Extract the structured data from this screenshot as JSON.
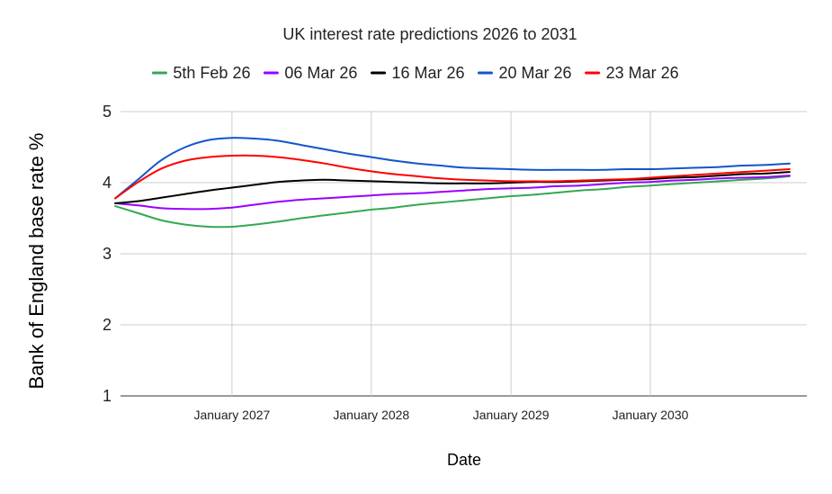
{
  "chart_data": {
    "type": "line",
    "title": "UK interest rate predictions 2026 to 2031",
    "xlabel": "Date",
    "ylabel": "Bank of England base rate %",
    "xlim": [
      "2026-03-15",
      "2031-02-15"
    ],
    "ylim": [
      1,
      5
    ],
    "yticks": [
      "1",
      "2",
      "3",
      "4",
      "5"
    ],
    "xticks": [
      {
        "label": "January 2027",
        "value": "2027-01-01"
      },
      {
        "label": "January 2028",
        "value": "2028-01-01"
      },
      {
        "label": "January 2029",
        "value": "2029-01-01"
      },
      {
        "label": "January 2030",
        "value": "2030-01-01"
      }
    ],
    "grid": true,
    "legend_position": "top",
    "x": [
      "2026-03",
      "2026-05",
      "2026-07",
      "2026-09",
      "2026-11",
      "2027-01",
      "2027-03",
      "2027-05",
      "2027-07",
      "2027-09",
      "2027-11",
      "2028-01",
      "2028-03",
      "2028-05",
      "2028-07",
      "2028-09",
      "2028-11",
      "2029-01",
      "2029-03",
      "2029-05",
      "2029-07",
      "2029-09",
      "2029-11",
      "2030-01",
      "2030-03",
      "2030-05",
      "2030-07",
      "2030-09",
      "2030-11",
      "2031-01"
    ],
    "series": [
      {
        "name": "5th Feb 26",
        "color": "#34a853",
        "values": [
          3.67,
          3.57,
          3.47,
          3.41,
          3.38,
          3.38,
          3.41,
          3.45,
          3.5,
          3.54,
          3.58,
          3.62,
          3.65,
          3.69,
          3.72,
          3.75,
          3.78,
          3.81,
          3.83,
          3.86,
          3.89,
          3.91,
          3.94,
          3.96,
          3.98,
          4.0,
          4.02,
          4.04,
          4.06,
          4.09
        ]
      },
      {
        "name": "06 Mar 26",
        "color": "#9900ff",
        "values": [
          3.71,
          3.68,
          3.64,
          3.63,
          3.63,
          3.65,
          3.69,
          3.73,
          3.76,
          3.78,
          3.8,
          3.82,
          3.84,
          3.85,
          3.87,
          3.89,
          3.91,
          3.92,
          3.93,
          3.95,
          3.96,
          3.98,
          4.0,
          4.01,
          4.03,
          4.04,
          4.06,
          4.07,
          4.08,
          4.1
        ]
      },
      {
        "name": "16 Mar 26",
        "color": "#000000",
        "values": [
          3.71,
          3.74,
          3.79,
          3.84,
          3.89,
          3.93,
          3.97,
          4.01,
          4.03,
          4.04,
          4.03,
          4.02,
          4.01,
          4.0,
          3.99,
          3.99,
          3.99,
          4.0,
          4.01,
          4.01,
          4.02,
          4.03,
          4.04,
          4.05,
          4.07,
          4.08,
          4.1,
          4.12,
          4.13,
          4.15
        ]
      },
      {
        "name": "20 Mar 26",
        "color": "#1155cc",
        "values": [
          3.78,
          4.05,
          4.32,
          4.5,
          4.6,
          4.63,
          4.62,
          4.59,
          4.53,
          4.47,
          4.41,
          4.36,
          4.31,
          4.27,
          4.24,
          4.21,
          4.2,
          4.19,
          4.18,
          4.18,
          4.18,
          4.18,
          4.19,
          4.19,
          4.2,
          4.21,
          4.22,
          4.24,
          4.25,
          4.27
        ]
      },
      {
        "name": "23 Mar 26",
        "color": "#ff0000",
        "values": [
          3.78,
          4.01,
          4.2,
          4.31,
          4.36,
          4.38,
          4.38,
          4.36,
          4.32,
          4.27,
          4.21,
          4.16,
          4.12,
          4.09,
          4.06,
          4.04,
          4.03,
          4.02,
          4.02,
          4.02,
          4.03,
          4.04,
          4.05,
          4.07,
          4.09,
          4.11,
          4.13,
          4.15,
          4.17,
          4.19
        ]
      }
    ]
  }
}
